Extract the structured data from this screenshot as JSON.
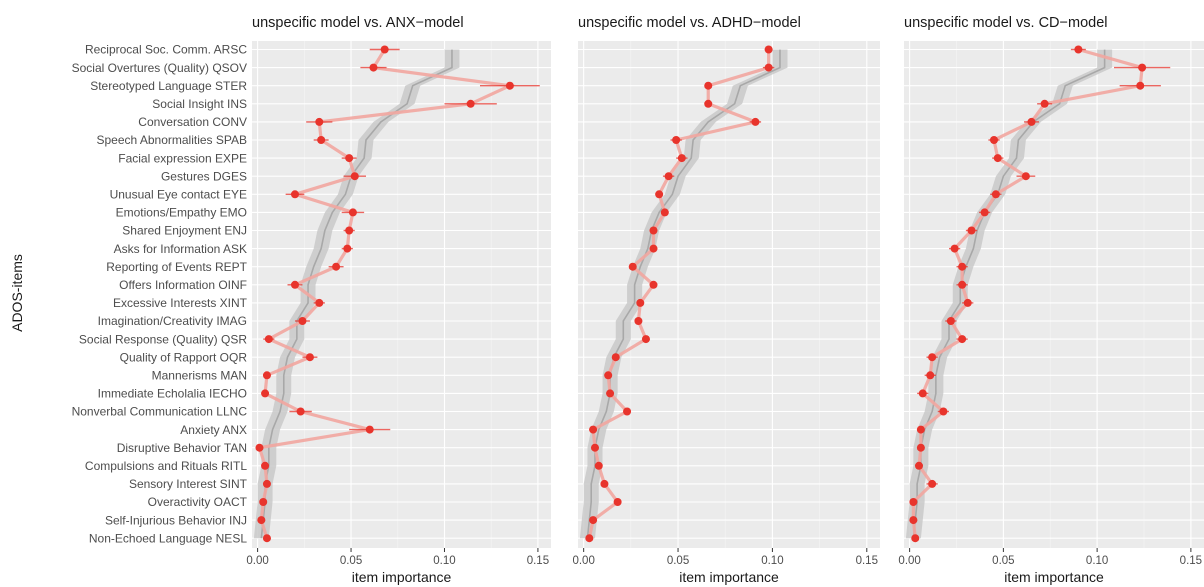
{
  "chart_data": {
    "type": "line",
    "ylabel": "ADOS-items",
    "xlabel": "item importance",
    "xlim": [
      -0.003,
      0.157
    ],
    "xticks": [
      0.0,
      0.05,
      0.1,
      0.15
    ],
    "xtick_labels": [
      "0.00",
      "0.05",
      "0.10",
      "0.15"
    ],
    "grid": true,
    "legend": "none",
    "colors": {
      "model_series": "#e8342c",
      "model_band": "#f2a6a0",
      "unspecific_line": "#a8a8a8",
      "unspecific_band": "#c9c9c9"
    },
    "items": [
      "Reciprocal Soc. Comm. ARSC",
      "Social Overtures (Quality) QSOV",
      "Stereotyped Language STER",
      "Social Insight INS",
      "Conversation CONV",
      "Speech Abnormalities SPAB",
      "Facial expression EXPE",
      "Gestures DGES",
      "Unusual Eye contact EYE",
      "Emotions/Empathy EMO",
      "Shared Enjoyment ENJ",
      "Asks for Information ASK",
      "Reporting of Events REPT",
      "Offers Information OINF",
      "Excessive Interests XINT",
      "Imagination/Creativity IMAG",
      "Social Response (Quality) QSR",
      "Quality of Rapport OQR",
      "Mannerisms MAN",
      "Immediate Echolalia IECHO",
      "Nonverbal Communication LLNC",
      "Anxiety ANX",
      "Disruptive Behavior TAN",
      "Compulsions and Rituals RITL",
      "Sensory Interest SINT",
      "Overactivity OACT",
      "Self-Injurious Behavior INJ",
      "Non-Echoed Language NESL"
    ],
    "unspecific_model": [
      0.104,
      0.104,
      0.083,
      0.08,
      0.066,
      0.058,
      0.057,
      0.05,
      0.047,
      0.04,
      0.036,
      0.034,
      0.03,
      0.027,
      0.027,
      0.021,
      0.021,
      0.016,
      0.014,
      0.014,
      0.012,
      0.008,
      0.006,
      0.006,
      0.004,
      0.004,
      0.003,
      0.002
    ],
    "panels": [
      {
        "title": "unspecific model  vs.  ANX−model",
        "series_values": [
          0.068,
          0.062,
          0.135,
          0.114,
          0.033,
          0.034,
          0.049,
          0.052,
          0.02,
          0.051,
          0.049,
          0.048,
          0.042,
          0.02,
          0.033,
          0.024,
          0.006,
          0.028,
          0.005,
          0.004,
          0.023,
          0.06,
          0.001,
          0.004,
          0.005,
          0.003,
          0.002,
          0.005
        ],
        "series_err": [
          0.008,
          0.007,
          0.016,
          0.014,
          0.007,
          0.004,
          0.004,
          0.006,
          0.005,
          0.006,
          0.003,
          0.003,
          0.004,
          0.004,
          0.003,
          0.004,
          0.003,
          0.004,
          0.002,
          0.002,
          0.006,
          0.011,
          0.002,
          0.002,
          0.002,
          0.002,
          0.002,
          0.002
        ]
      },
      {
        "title": "unspecific model  vs.  ADHD−model",
        "series_values": [
          0.098,
          0.098,
          0.066,
          0.066,
          0.091,
          0.049,
          0.052,
          0.045,
          0.04,
          0.043,
          0.037,
          0.037,
          0.026,
          0.037,
          0.03,
          0.029,
          0.033,
          0.017,
          0.013,
          0.014,
          0.023,
          0.005,
          0.006,
          0.008,
          0.011,
          0.018,
          0.005,
          0.003
        ],
        "series_err": [
          0.002,
          0.003,
          0.002,
          0.002,
          0.003,
          0.003,
          0.003,
          0.003,
          0.002,
          0.002,
          0.002,
          0.002,
          0.002,
          0.002,
          0.002,
          0.002,
          0.002,
          0.002,
          0.002,
          0.002,
          0.002,
          0.002,
          0.002,
          0.002,
          0.002,
          0.002,
          0.002,
          0.002
        ]
      },
      {
        "title": "unspecific model  vs.  CD−model",
        "series_values": [
          0.09,
          0.124,
          0.123,
          0.072,
          0.065,
          0.045,
          0.047,
          0.062,
          0.046,
          0.04,
          0.033,
          0.024,
          0.028,
          0.028,
          0.031,
          0.022,
          0.028,
          0.012,
          0.011,
          0.007,
          0.018,
          0.006,
          0.006,
          0.005,
          0.012,
          0.002,
          0.002,
          0.003
        ],
        "series_err": [
          0.004,
          0.015,
          0.011,
          0.004,
          0.004,
          0.003,
          0.003,
          0.005,
          0.003,
          0.003,
          0.003,
          0.003,
          0.003,
          0.003,
          0.003,
          0.003,
          0.003,
          0.003,
          0.003,
          0.003,
          0.003,
          0.002,
          0.002,
          0.002,
          0.003,
          0.002,
          0.002,
          0.002
        ]
      }
    ]
  }
}
